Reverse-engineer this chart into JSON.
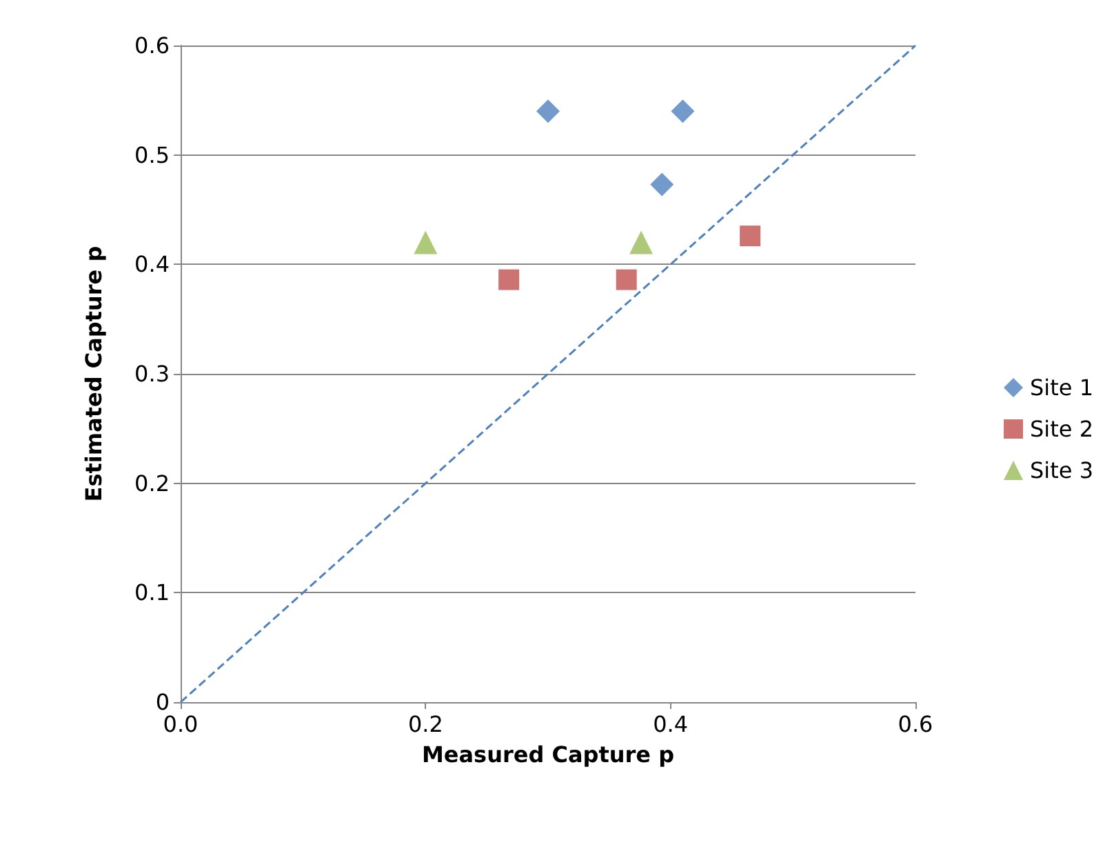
{
  "chart_data": {
    "type": "scatter",
    "xlabel": "Measured Capture p",
    "ylabel": "Estimated Capture p",
    "xlim": [
      0,
      0.6
    ],
    "xticks": [
      {
        "value": 0,
        "label": "0.0"
      },
      {
        "value": 0.2,
        "label": "0.2"
      },
      {
        "value": 0.4,
        "label": "0.4"
      },
      {
        "value": 0.6,
        "label": "0.6"
      }
    ],
    "ylim": [
      0,
      0.6
    ],
    "yticks": [
      0,
      0.1,
      0.2,
      0.3,
      0.4,
      0.5,
      0.6
    ],
    "grid": "y",
    "legend": "right",
    "series": [
      {
        "name": "Site 1",
        "color": "#4f81bd",
        "marker": "diamond",
        "x": [
          0.3,
          0.41,
          0.393
        ],
        "values": [
          0.54,
          0.54,
          0.473
        ]
      },
      {
        "name": "Site 2",
        "color": "#c0504d",
        "marker": "square",
        "x": [
          0.268,
          0.364,
          0.465
        ],
        "values": [
          0.386,
          0.386,
          0.426
        ]
      },
      {
        "name": "Site 3",
        "color": "#9bbb59",
        "marker": "triangle",
        "x": [
          0.2,
          0.376
        ],
        "values": [
          0.42,
          0.42
        ]
      },
      {
        "type": "line",
        "color": "#4f81bd",
        "line_style": "dashed",
        "marker": "none",
        "x": [
          0,
          0.6
        ],
        "values": [
          0,
          0.6
        ]
      }
    ]
  }
}
